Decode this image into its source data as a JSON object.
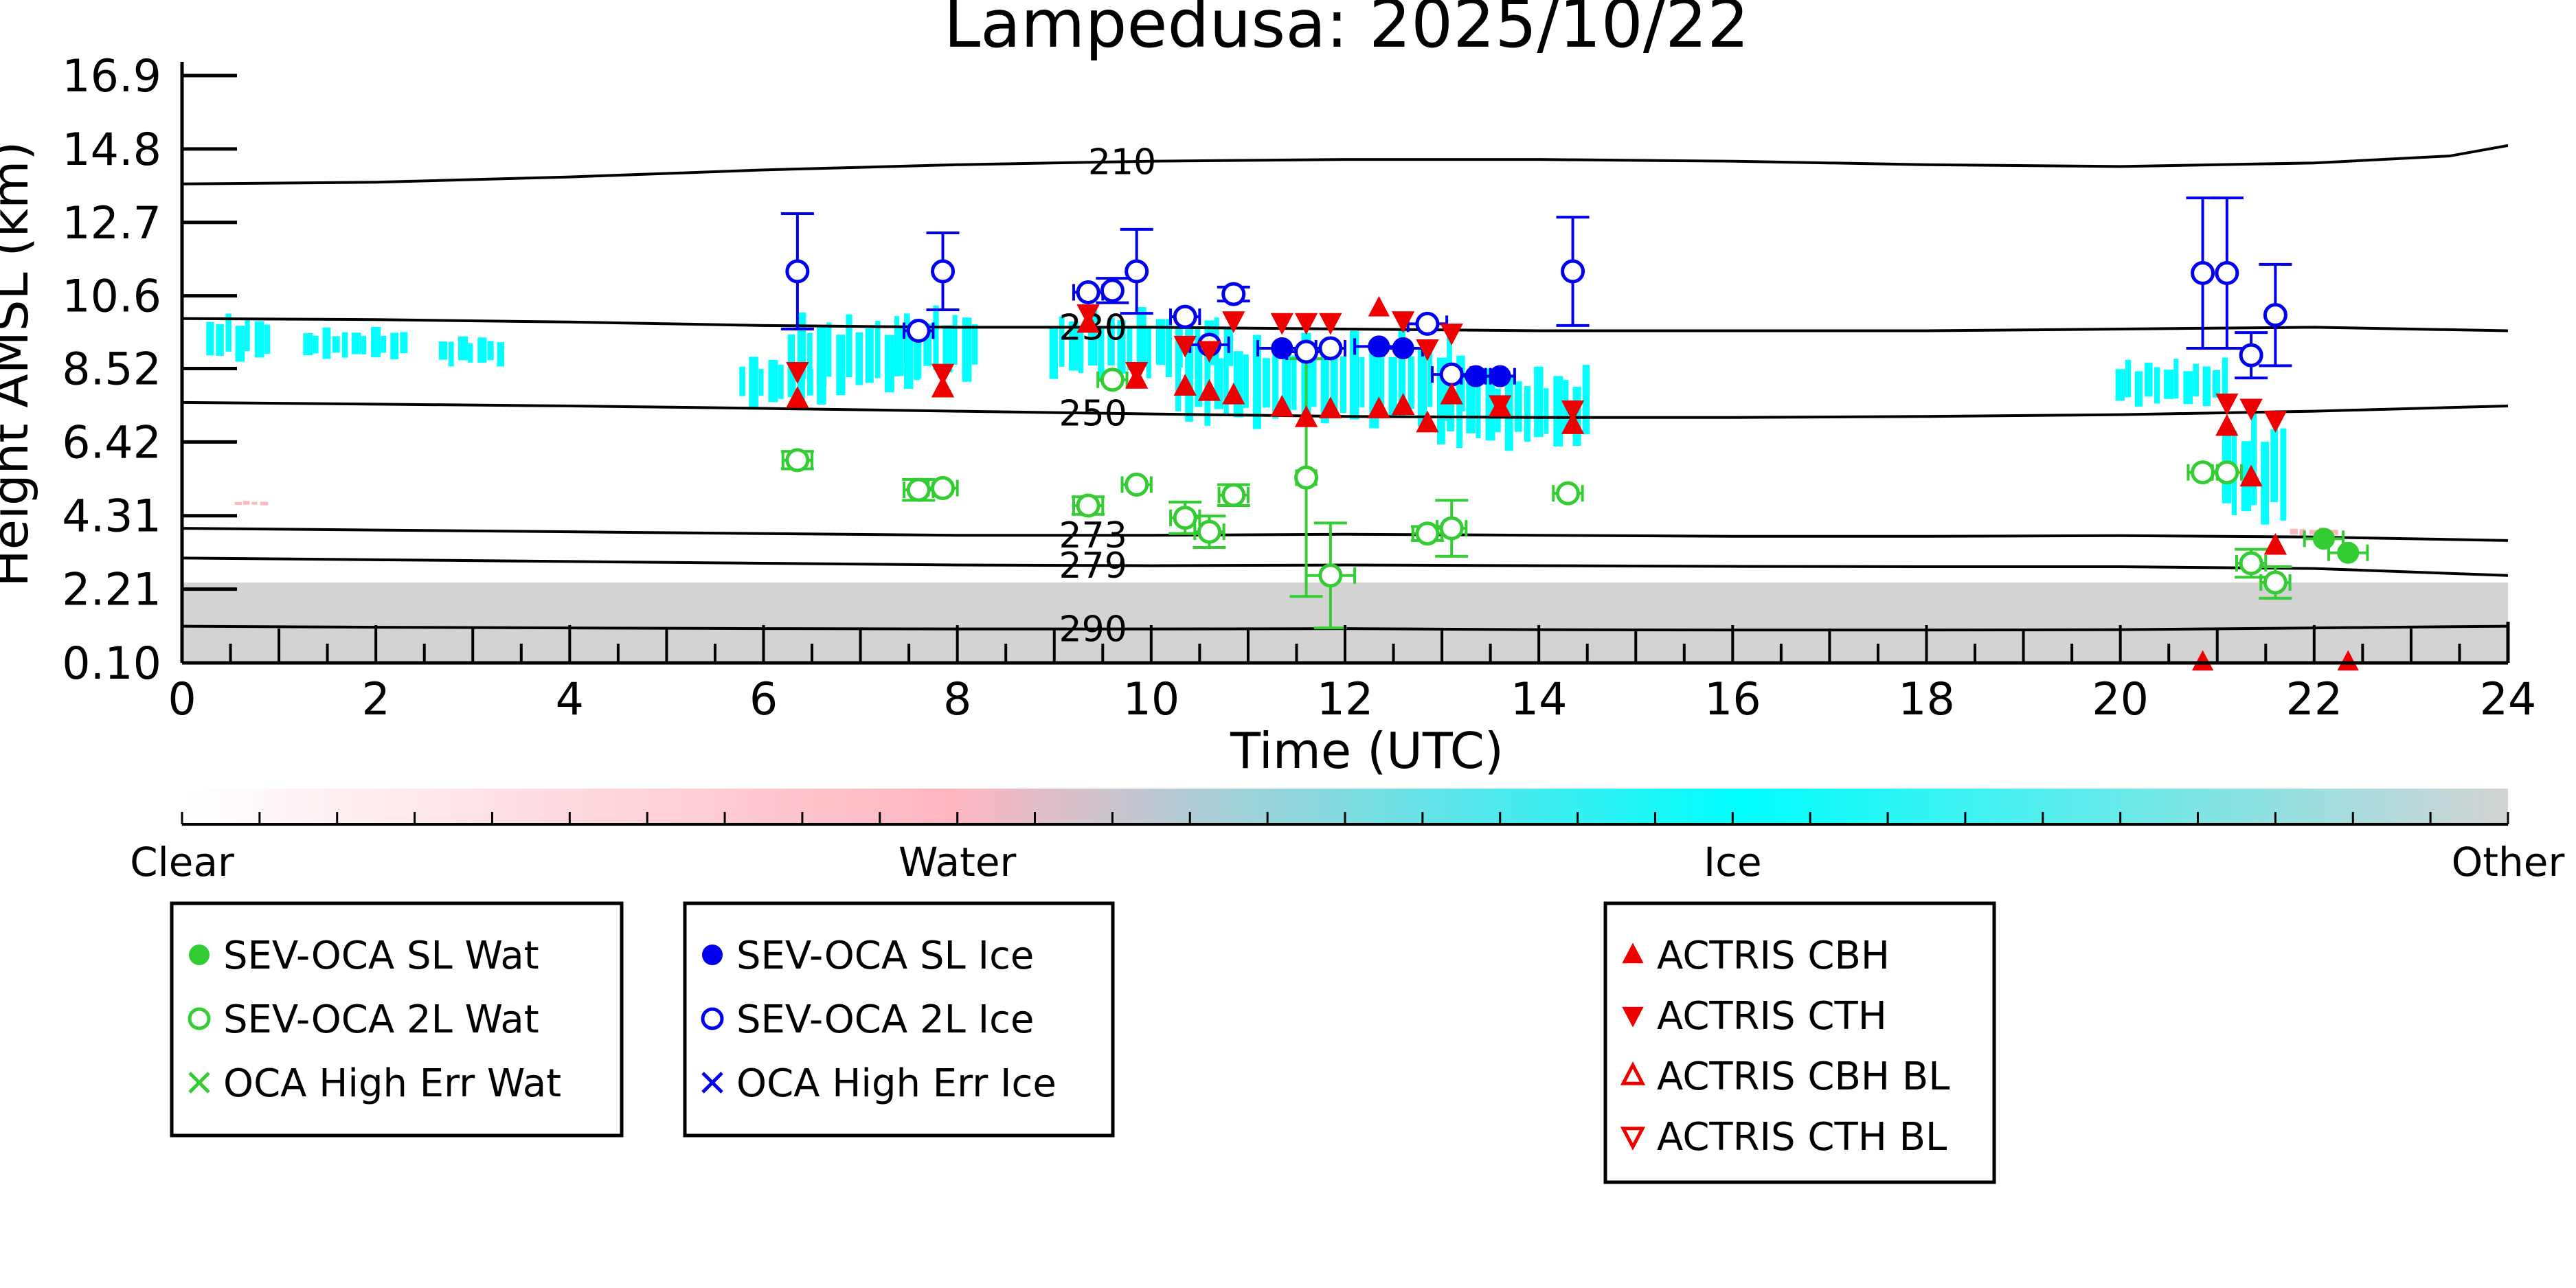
{
  "chart_data": {
    "type": "scatter",
    "title": "Lampedusa: 2025/10/22",
    "xlabel": "Time (UTC)",
    "ylabel": "Height AMSL (km)",
    "xlim": [
      0,
      24
    ],
    "ylim": [
      0.1,
      16.9
    ],
    "xticks": [
      "0",
      "2",
      "4",
      "6",
      "8",
      "10",
      "12",
      "14",
      "16",
      "18",
      "20",
      "22",
      "24"
    ],
    "yticks": [
      "0.10",
      "2.21",
      "4.31",
      "6.42",
      "8.52",
      "10.6",
      "12.7",
      "14.8",
      "16.9"
    ],
    "colorbar": {
      "labels": [
        "Clear",
        "Water",
        "Ice",
        "Other"
      ],
      "colors": [
        "#ffffff",
        "#ffb6c1",
        "#00ffff",
        "#d3d3d3"
      ]
    },
    "contours": [
      {
        "label": "210",
        "label_x": 9.7,
        "points": [
          [
            0,
            13.8
          ],
          [
            2,
            13.85
          ],
          [
            4,
            14.0
          ],
          [
            6,
            14.2
          ],
          [
            8,
            14.35
          ],
          [
            10,
            14.45
          ],
          [
            12,
            14.5
          ],
          [
            14,
            14.5
          ],
          [
            16,
            14.45
          ],
          [
            18,
            14.35
          ],
          [
            20,
            14.3
          ],
          [
            22,
            14.4
          ],
          [
            23.4,
            14.6
          ],
          [
            24,
            14.9
          ]
        ]
      },
      {
        "label": "230",
        "label_x": 9.4,
        "points": [
          [
            0,
            9.95
          ],
          [
            2,
            9.92
          ],
          [
            4,
            9.85
          ],
          [
            6,
            9.75
          ],
          [
            8,
            9.7
          ],
          [
            10,
            9.7
          ],
          [
            12,
            9.65
          ],
          [
            14,
            9.6
          ],
          [
            16,
            9.6
          ],
          [
            18,
            9.6
          ],
          [
            20,
            9.65
          ],
          [
            22,
            9.7
          ],
          [
            24,
            9.6
          ]
        ]
      },
      {
        "label": "250",
        "label_x": 9.4,
        "points": [
          [
            0,
            7.55
          ],
          [
            2,
            7.5
          ],
          [
            4,
            7.45
          ],
          [
            6,
            7.38
          ],
          [
            8,
            7.3
          ],
          [
            10,
            7.22
          ],
          [
            12,
            7.15
          ],
          [
            14,
            7.12
          ],
          [
            16,
            7.12
          ],
          [
            18,
            7.15
          ],
          [
            20,
            7.2
          ],
          [
            22,
            7.3
          ],
          [
            24,
            7.45
          ]
        ]
      },
      {
        "label": "273",
        "label_x": 9.4,
        "points": [
          [
            0,
            3.95
          ],
          [
            2,
            3.9
          ],
          [
            4,
            3.85
          ],
          [
            6,
            3.8
          ],
          [
            8,
            3.75
          ],
          [
            10,
            3.75
          ],
          [
            12,
            3.78
          ],
          [
            14,
            3.75
          ],
          [
            16,
            3.72
          ],
          [
            18,
            3.72
          ],
          [
            20,
            3.74
          ],
          [
            22,
            3.7
          ],
          [
            24,
            3.6
          ]
        ]
      },
      {
        "label": "279",
        "label_x": 9.4,
        "points": [
          [
            0,
            3.1
          ],
          [
            2,
            3.05
          ],
          [
            4,
            3.0
          ],
          [
            6,
            2.95
          ],
          [
            8,
            2.9
          ],
          [
            10,
            2.88
          ],
          [
            12,
            2.9
          ],
          [
            14,
            2.88
          ],
          [
            16,
            2.86
          ],
          [
            18,
            2.85
          ],
          [
            20,
            2.85
          ],
          [
            22,
            2.8
          ],
          [
            24,
            2.6
          ]
        ]
      },
      {
        "label": "290",
        "label_x": 9.4,
        "points": [
          [
            0,
            1.15
          ],
          [
            2,
            1.12
          ],
          [
            4,
            1.1
          ],
          [
            6,
            1.08
          ],
          [
            8,
            1.07
          ],
          [
            10,
            1.07
          ],
          [
            12,
            1.08
          ],
          [
            14,
            1.05
          ],
          [
            16,
            1.04
          ],
          [
            18,
            1.04
          ],
          [
            20,
            1.05
          ],
          [
            22,
            1.1
          ],
          [
            24,
            1.15
          ]
        ]
      }
    ],
    "series": [
      {
        "name": "SEV-OCA SL Wat",
        "marker": "filled-circle",
        "color": "#33cc33",
        "points": [
          {
            "x": 22.1,
            "y": 3.65,
            "xerr": 0.2
          },
          {
            "x": 22.35,
            "y": 3.25,
            "xerr": 0.2
          }
        ]
      },
      {
        "name": "SEV-OCA 2L Wat",
        "marker": "open-circle",
        "color": "#33cc33",
        "points": [
          {
            "x": 6.35,
            "y": 5.9,
            "yerr": 0.25,
            "xerr": 0.15
          },
          {
            "x": 7.6,
            "y": 5.05,
            "yerr": 0.3,
            "xerr": 0.15
          },
          {
            "x": 7.85,
            "y": 5.1,
            "xerr": 0.15
          },
          {
            "x": 9.35,
            "y": 4.6,
            "yerr": 0.25,
            "xerr": 0.15
          },
          {
            "x": 9.6,
            "y": 8.2,
            "xerr": 0.15
          },
          {
            "x": 9.85,
            "y": 5.2,
            "xerr": 0.15
          },
          {
            "x": 10.35,
            "y": 4.25,
            "yerr": 0.45,
            "xerr": 0.15
          },
          {
            "x": 10.6,
            "y": 3.85,
            "yerr": 0.45,
            "xerr": 0.15
          },
          {
            "x": 10.85,
            "y": 4.9,
            "yerr": 0.3,
            "xerr": 0.15
          },
          {
            "x": 11.6,
            "y": 5.4,
            "yerr": 3.4,
            "xerr": 0.1
          },
          {
            "x": 11.85,
            "y": 2.6,
            "yerr": 1.5,
            "xerr": 0.25
          },
          {
            "x": 12.85,
            "y": 3.8,
            "yerr": 0.2,
            "xerr": 0.15
          },
          {
            "x": 13.1,
            "y": 3.95,
            "yerr": 0.8,
            "xerr": 0.15
          },
          {
            "x": 14.3,
            "y": 4.95,
            "xerr": 0.15
          },
          {
            "x": 20.85,
            "y": 5.55,
            "xerr": 0.15
          },
          {
            "x": 21.1,
            "y": 5.55,
            "xerr": 0.15
          },
          {
            "x": 21.35,
            "y": 2.95,
            "yerr": 0.4,
            "xerr": 0.15
          },
          {
            "x": 21.6,
            "y": 2.4,
            "yerr": 0.45,
            "xerr": 0.15
          }
        ]
      },
      {
        "name": "OCA High Err Wat",
        "marker": "x",
        "color": "#33cc33",
        "points": []
      },
      {
        "name": "SEV-OCA SL Ice",
        "marker": "filled-circle",
        "color": "#0000ee",
        "points": [
          {
            "x": 11.35,
            "y": 9.1,
            "xerr": 0.25
          },
          {
            "x": 12.35,
            "y": 9.15,
            "xerr": 0.25
          },
          {
            "x": 12.6,
            "y": 9.1,
            "xerr": 0.2
          },
          {
            "x": 13.35,
            "y": 8.3,
            "xerr": 0.15
          },
          {
            "x": 13.6,
            "y": 8.3,
            "xerr": 0.15
          }
        ]
      },
      {
        "name": "SEV-OCA 2L Ice",
        "marker": "open-circle",
        "color": "#0000ee",
        "points": [
          {
            "x": 6.35,
            "y": 11.3,
            "yerr": 1.65
          },
          {
            "x": 7.6,
            "y": 9.6,
            "xerr": 0.15
          },
          {
            "x": 7.85,
            "y": 11.3,
            "yerr": 1.1
          },
          {
            "x": 9.35,
            "y": 10.7,
            "xerr": 0.15
          },
          {
            "x": 9.6,
            "y": 10.75,
            "yerr": 0.35
          },
          {
            "x": 9.85,
            "y": 11.3,
            "yerr": 1.2
          },
          {
            "x": 10.35,
            "y": 10.0,
            "xerr": 0.15
          },
          {
            "x": 10.6,
            "y": 9.2,
            "xerr": 0.2
          },
          {
            "x": 10.85,
            "y": 10.65,
            "yerr": 0.2
          },
          {
            "x": 11.6,
            "y": 9.0,
            "xerr": 0.2
          },
          {
            "x": 11.85,
            "y": 9.1,
            "xerr": 0.15
          },
          {
            "x": 12.85,
            "y": 9.8,
            "xerr": 0.2
          },
          {
            "x": 13.1,
            "y": 8.35,
            "xerr": 0.2
          },
          {
            "x": 14.35,
            "y": 11.3,
            "yerr": 1.55
          },
          {
            "x": 20.85,
            "y": 11.25,
            "yerr": 2.15
          },
          {
            "x": 21.1,
            "y": 11.25,
            "yerr": 2.15
          },
          {
            "x": 21.35,
            "y": 8.9,
            "yerr": 0.65
          },
          {
            "x": 21.6,
            "y": 10.05,
            "yerr": 1.45
          }
        ]
      },
      {
        "name": "OCA High Err Ice",
        "marker": "x",
        "color": "#0000ee",
        "points": []
      },
      {
        "name": "ACTRIS CBH",
        "marker": "triangle-up",
        "color": "#ee0000",
        "points": [
          {
            "x": 6.35,
            "y": 7.65
          },
          {
            "x": 7.85,
            "y": 7.95
          },
          {
            "x": 9.35,
            "y": 9.8
          },
          {
            "x": 9.85,
            "y": 8.2
          },
          {
            "x": 10.35,
            "y": 8.0
          },
          {
            "x": 10.6,
            "y": 7.85
          },
          {
            "x": 10.85,
            "y": 7.75
          },
          {
            "x": 11.35,
            "y": 7.4
          },
          {
            "x": 11.6,
            "y": 7.1
          },
          {
            "x": 11.85,
            "y": 7.35
          },
          {
            "x": 12.35,
            "y": 7.35
          },
          {
            "x": 12.6,
            "y": 7.45
          },
          {
            "x": 12.85,
            "y": 6.95
          },
          {
            "x": 13.1,
            "y": 7.75
          },
          {
            "x": 13.6,
            "y": 7.4
          },
          {
            "x": 14.35,
            "y": 6.9
          },
          {
            "x": 21.1,
            "y": 6.85
          },
          {
            "x": 21.35,
            "y": 5.4
          },
          {
            "x": 21.6,
            "y": 3.45
          }
        ]
      },
      {
        "name": "ACTRIS CTH",
        "marker": "triangle-down",
        "color": "#ee0000",
        "points": [
          {
            "x": 6.35,
            "y": 8.45
          },
          {
            "x": 7.85,
            "y": 8.4
          },
          {
            "x": 9.35,
            "y": 10.1
          },
          {
            "x": 9.85,
            "y": 8.45
          },
          {
            "x": 10.35,
            "y": 9.2
          },
          {
            "x": 10.6,
            "y": 9.05
          },
          {
            "x": 10.85,
            "y": 9.9
          },
          {
            "x": 11.35,
            "y": 9.85
          },
          {
            "x": 11.6,
            "y": 9.85
          },
          {
            "x": 11.85,
            "y": 9.85
          },
          {
            "x": 12.6,
            "y": 9.9
          },
          {
            "x": 12.85,
            "y": 9.1
          },
          {
            "x": 13.1,
            "y": 9.55
          },
          {
            "x": 13.6,
            "y": 7.5
          },
          {
            "x": 14.35,
            "y": 7.35
          },
          {
            "x": 21.1,
            "y": 7.55
          },
          {
            "x": 21.35,
            "y": 7.4
          },
          {
            "x": 21.6,
            "y": 7.05
          }
        ]
      },
      {
        "name": "ACTRIS CBH BL",
        "marker": "open-triangle-up",
        "color": "#ee0000",
        "points": []
      },
      {
        "name": "ACTRIS CTH BL",
        "marker": "open-triangle-down",
        "color": "#ee0000",
        "points": []
      }
    ],
    "extra_markers": [
      {
        "marker": "triangle-up",
        "color": "#ee0000",
        "x": 12.35,
        "y": 10.25
      },
      {
        "marker": "triangle-up",
        "color": "#ee0000",
        "x": 20.85,
        "y": 0.12
      },
      {
        "marker": "triangle-up",
        "color": "#ee0000",
        "x": 22.35,
        "y": 0.12
      }
    ],
    "cloud_regions": [
      {
        "class": "Ice",
        "color": "#00ffff",
        "x0": 0.2,
        "x1": 0.9,
        "y0": 8.6,
        "y1": 10.3
      },
      {
        "class": "Ice",
        "color": "#00ffff",
        "x0": 1.2,
        "x1": 2.3,
        "y0": 8.7,
        "y1": 9.8
      },
      {
        "class": "Ice",
        "color": "#00ffff",
        "x0": 2.6,
        "x1": 3.3,
        "y0": 8.5,
        "y1": 9.6
      },
      {
        "class": "Ice",
        "color": "#00ffff",
        "x0": 5.7,
        "x1": 6.6,
        "y0": 7.3,
        "y1": 9.1
      },
      {
        "class": "Ice",
        "color": "#00ffff",
        "x0": 6.2,
        "x1": 7.6,
        "y0": 7.6,
        "y1": 10.4
      },
      {
        "class": "Ice",
        "color": "#00ffff",
        "x0": 7.3,
        "x1": 8.2,
        "y0": 8.0,
        "y1": 10.6
      },
      {
        "class": "Ice",
        "color": "#00ffff",
        "x0": 8.9,
        "x1": 10.8,
        "y0": 8.0,
        "y1": 10.5
      },
      {
        "class": "Ice",
        "color": "#00ffff",
        "x0": 10.2,
        "x1": 13.2,
        "y0": 6.6,
        "y1": 9.9
      },
      {
        "class": "Ice",
        "color": "#00ffff",
        "x0": 12.9,
        "x1": 14.5,
        "y0": 6.0,
        "y1": 8.9
      },
      {
        "class": "Ice",
        "color": "#00ffff",
        "x0": 19.9,
        "x1": 21.1,
        "y0": 7.3,
        "y1": 9.0
      },
      {
        "class": "Ice",
        "color": "#00ffff",
        "x0": 21.0,
        "x1": 21.7,
        "y0": 3.7,
        "y1": 7.7
      },
      {
        "class": "Water",
        "color": "#ffb6c1",
        "x0": 0.5,
        "x1": 0.85,
        "y0": 4.6,
        "y1": 4.75
      },
      {
        "class": "Water",
        "color": "#ffb6c1",
        "x0": 21.7,
        "x1": 22.2,
        "y0": 3.7,
        "y1": 4.0
      },
      {
        "class": "Other",
        "color": "#d3d3d3",
        "x0": 0,
        "x1": 24,
        "y0": 0.1,
        "y1": 2.4
      }
    ]
  },
  "legends": {
    "water": [
      {
        "label": "SEV-OCA SL Wat",
        "marker": "filled-circle",
        "color": "#33cc33"
      },
      {
        "label": "SEV-OCA 2L Wat",
        "marker": "open-circle",
        "color": "#33cc33"
      },
      {
        "label": "OCA High Err Wat",
        "marker": "x",
        "color": "#33cc33"
      }
    ],
    "ice": [
      {
        "label": "SEV-OCA SL Ice",
        "marker": "filled-circle",
        "color": "#0000ee"
      },
      {
        "label": "SEV-OCA 2L Ice",
        "marker": "open-circle",
        "color": "#0000ee"
      },
      {
        "label": "OCA High Err Ice",
        "marker": "x",
        "color": "#0000ee"
      }
    ],
    "actris": [
      {
        "label": "ACTRIS CBH",
        "marker": "triangle-up",
        "color": "#ee0000"
      },
      {
        "label": "ACTRIS CTH",
        "marker": "triangle-down",
        "color": "#ee0000"
      },
      {
        "label": "ACTRIS CBH BL",
        "marker": "open-triangle-up",
        "color": "#ee0000"
      },
      {
        "label": "ACTRIS CTH BL",
        "marker": "open-triangle-down",
        "color": "#ee0000"
      }
    ]
  }
}
